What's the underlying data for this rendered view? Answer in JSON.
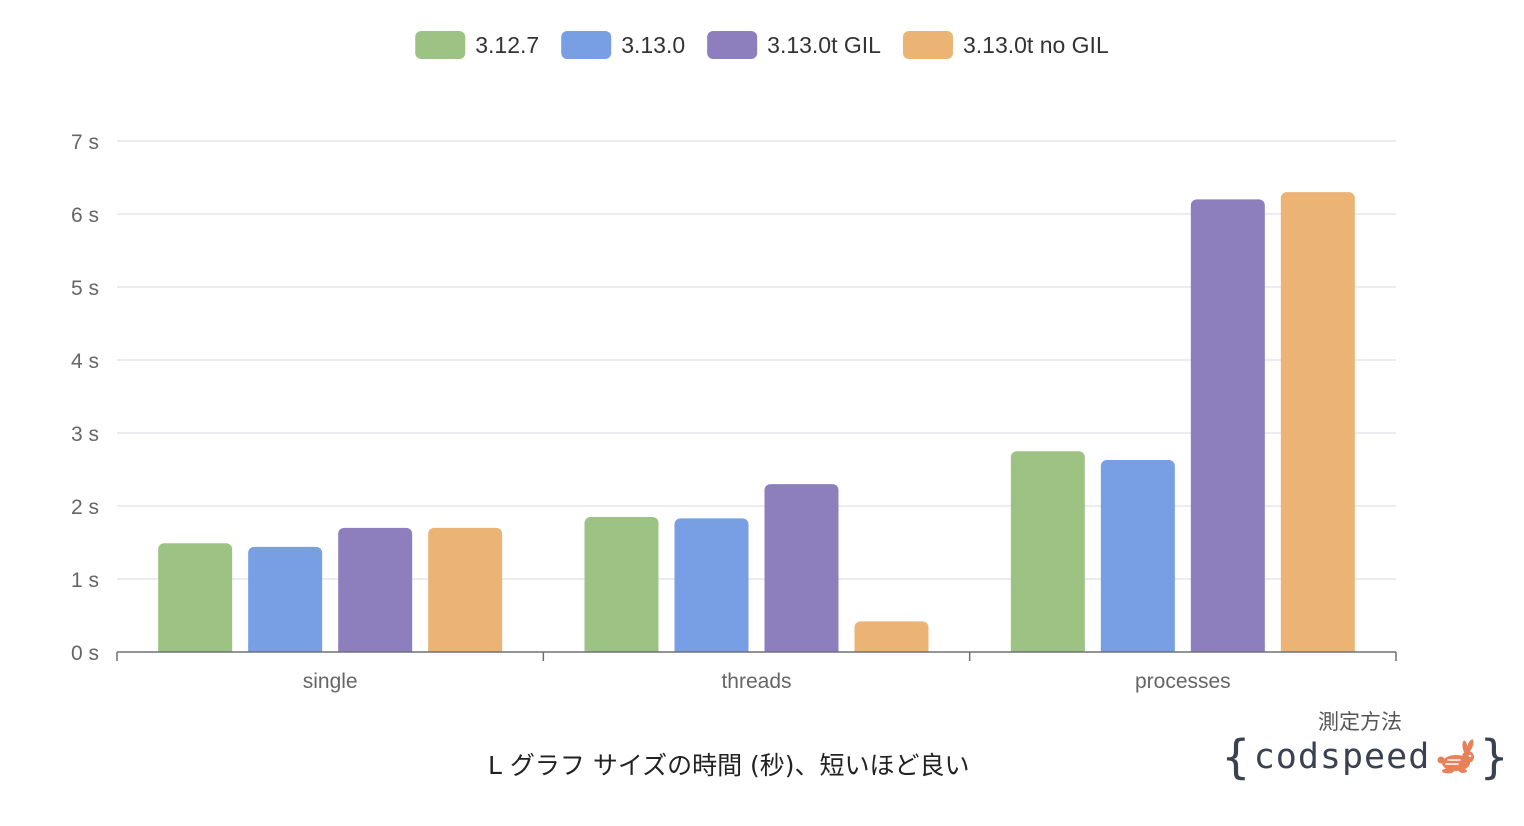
{
  "chart_data": {
    "type": "bar",
    "categories": [
      "single",
      "threads",
      "processes"
    ],
    "series": [
      {
        "name": "3.12.7",
        "color": "#9dc384",
        "values": [
          1.49,
          1.85,
          2.75
        ]
      },
      {
        "name": "3.13.0",
        "color": "#789ee4",
        "values": [
          1.44,
          1.83,
          2.63
        ]
      },
      {
        "name": "3.13.0t GIL",
        "color": "#8d7fbe",
        "values": [
          1.7,
          2.3,
          6.2
        ]
      },
      {
        "name": "3.13.0t no GIL",
        "color": "#ebb474",
        "values": [
          1.7,
          0.42,
          6.3
        ]
      }
    ],
    "ylim": [
      0,
      7
    ],
    "yticks": [
      0,
      1,
      2,
      3,
      4,
      5,
      6,
      7
    ],
    "ytick_labels": [
      "0 s",
      "1 s",
      "2 s",
      "3 s",
      "4 s",
      "5 s",
      "6 s",
      "7 s"
    ],
    "grid": true,
    "legend": "top-center",
    "xlabel": "L グラフ サイズの時間 (秒)、短いほど良い",
    "ylabel": "",
    "title": ""
  },
  "branding": {
    "caption": "測定方法",
    "brace_open": "{",
    "wordmark": "codspeed",
    "brace_close": "}",
    "icon": "rabbit-icon",
    "icon_color": "#e8805a"
  }
}
